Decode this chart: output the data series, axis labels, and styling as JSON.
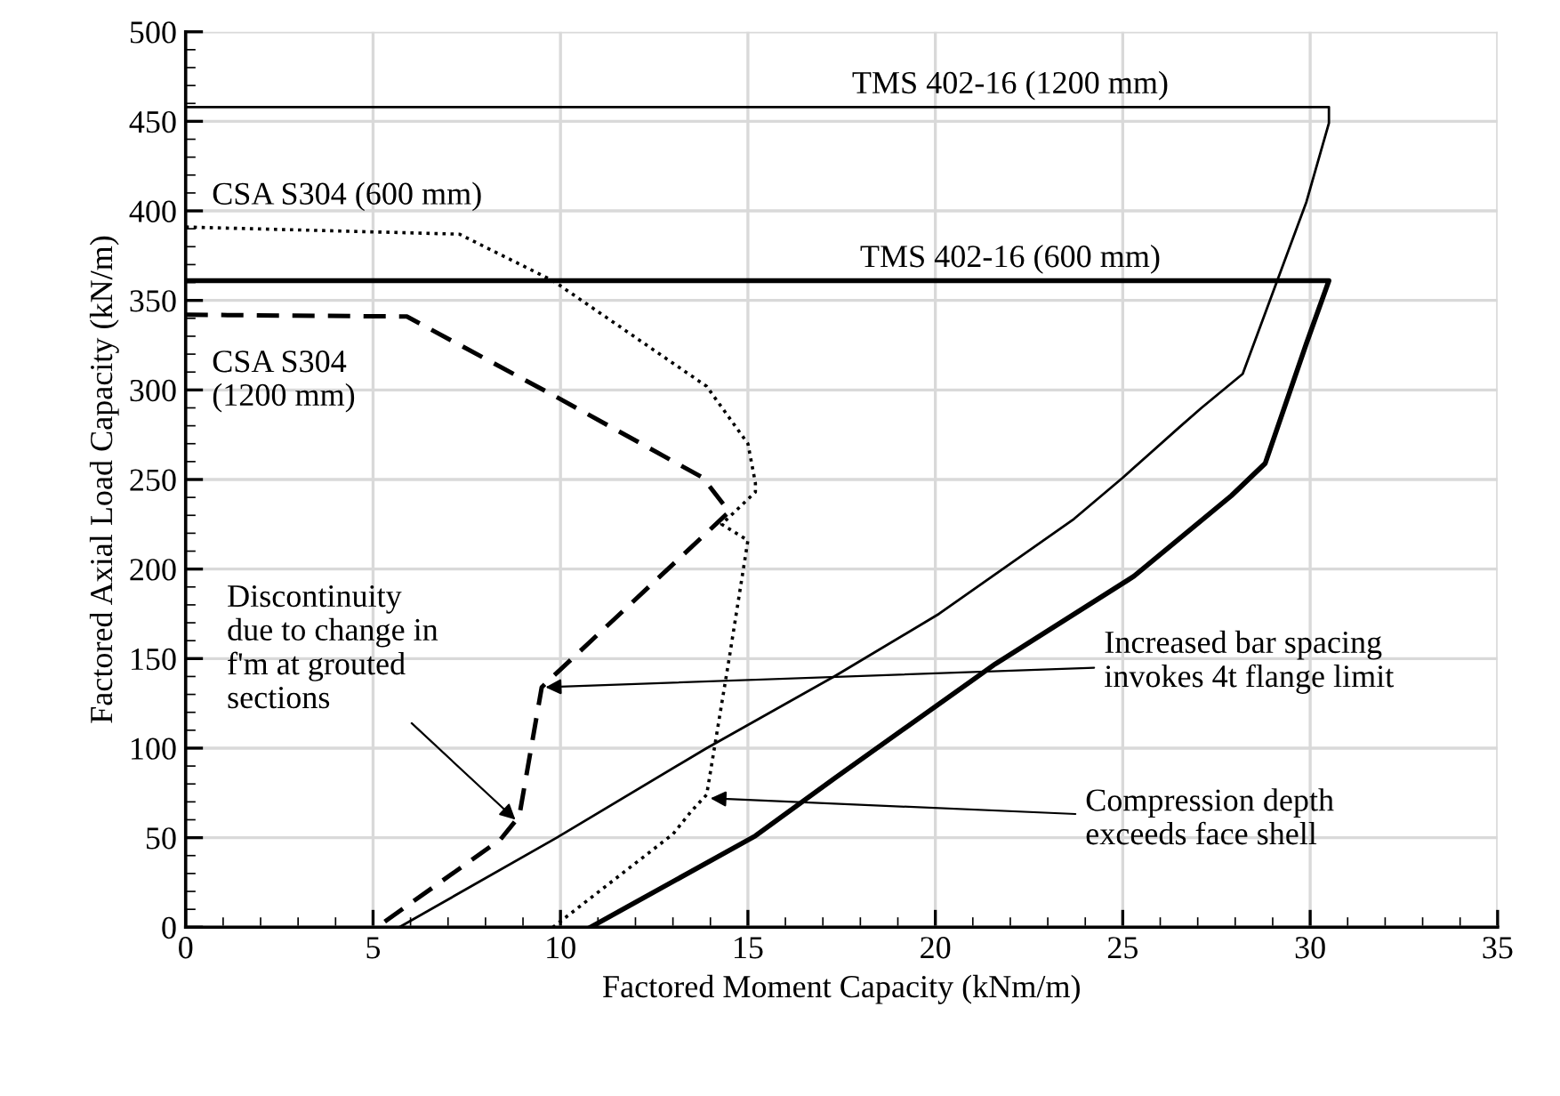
{
  "chart_data": {
    "type": "line",
    "xlabel": "Factored Moment Capacity (kNm/m)",
    "ylabel": "Factored Axial Load Capacity (kN/m)",
    "xlim": [
      0,
      35
    ],
    "xticks": [
      0,
      5,
      10,
      15,
      20,
      25,
      30,
      35
    ],
    "ylim": [
      0,
      500
    ],
    "yticks": [
      0,
      50,
      100,
      150,
      200,
      250,
      300,
      350,
      400,
      450,
      500
    ],
    "grid": true,
    "legend": false,
    "marker": "none",
    "series": [
      {
        "name": "TMS 402-16 (1200 mm)",
        "color": "#000000",
        "line_style": "solid",
        "x": [
          0,
          30.5,
          30.5,
          29.9,
          28.2,
          27.1,
          26.5,
          25.0,
          23.7,
          20.1,
          17.3,
          13.9,
          9.9,
          5.7
        ],
        "values": [
          458,
          458,
          449,
          405,
          309,
          290,
          279,
          251,
          228,
          175,
          140,
          100,
          50,
          0
        ]
      },
      {
        "name": "TMS 402-16 (600 mm)",
        "color": "#000000",
        "line_style": "solid",
        "x": [
          0,
          30.5,
          29.9,
          28.8,
          27.9,
          25.3,
          21.6,
          17.3,
          15.2,
          10.8
        ],
        "values": [
          361,
          361,
          326,
          259,
          241,
          196,
          147,
          83,
          51,
          0
        ]
      },
      {
        "name": "CSA S304 (600 mm)",
        "color": "#000000",
        "line_style": "dotted",
        "x": [
          0,
          7.3,
          9.8,
          13.9,
          15.0,
          15.2,
          15.2,
          14.3,
          15.0,
          14.5,
          13.9,
          13.5,
          13.0,
          9.8
        ],
        "values": [
          391,
          387,
          361,
          302,
          270,
          248,
          243,
          225,
          216,
          150,
          74,
          65,
          52,
          0
        ]
      },
      {
        "name": "CSA S304\n(1200 mm)",
        "color": "#000000",
        "line_style": "dashed",
        "x": [
          0,
          5.9,
          9.9,
          13.8,
          14.5,
          9.8,
          9.5,
          8.9,
          8.4,
          5.1
        ],
        "values": [
          342,
          341,
          296,
          251,
          232,
          140,
          134,
          62,
          49,
          0
        ]
      }
    ],
    "annotations": [
      {
        "text": "Discontinuity\ndue to change in\nf'm at grouted\nsections",
        "x": 8.8,
        "y": 60
      },
      {
        "text": "Increased bar spacing\ninvokes 4t flange limit",
        "x": 9.6,
        "y": 134
      },
      {
        "text": "Compression depth\nexceeds face shell",
        "x": 14.0,
        "y": 72
      }
    ]
  }
}
